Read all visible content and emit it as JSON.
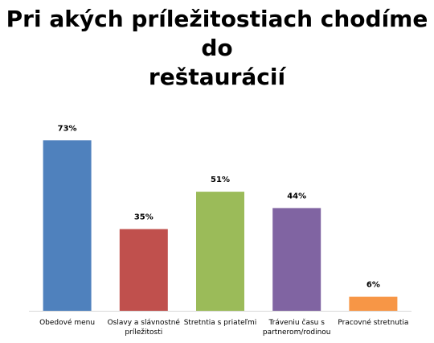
{
  "title_lines": [
    "Pri akých príležitostiach chodíme do",
    "reštaurácií"
  ],
  "chart_data": {
    "type": "bar",
    "title": "Pri akých príležitostiach chodíme do reštaurácií",
    "categories": [
      [
        "Obedové menu"
      ],
      [
        "Oslavy a slávnostné",
        "príležitosti"
      ],
      [
        "Stretntia s priateľmi"
      ],
      [
        "Tráveniu času s",
        "partnerom/rodinou"
      ],
      [
        "Pracovné stretnutia"
      ]
    ],
    "values": [
      73,
      35,
      51,
      44,
      6
    ],
    "data_labels": [
      "73%",
      "35%",
      "51%",
      "44%",
      "6%"
    ],
    "colors": [
      "#4f81bd",
      "#c0504d",
      "#9bbb59",
      "#8064a2",
      "#f79646"
    ],
    "ylim": [
      0,
      80
    ],
    "grid": false,
    "legend": "none",
    "axis_color": "#d9d9d9"
  }
}
